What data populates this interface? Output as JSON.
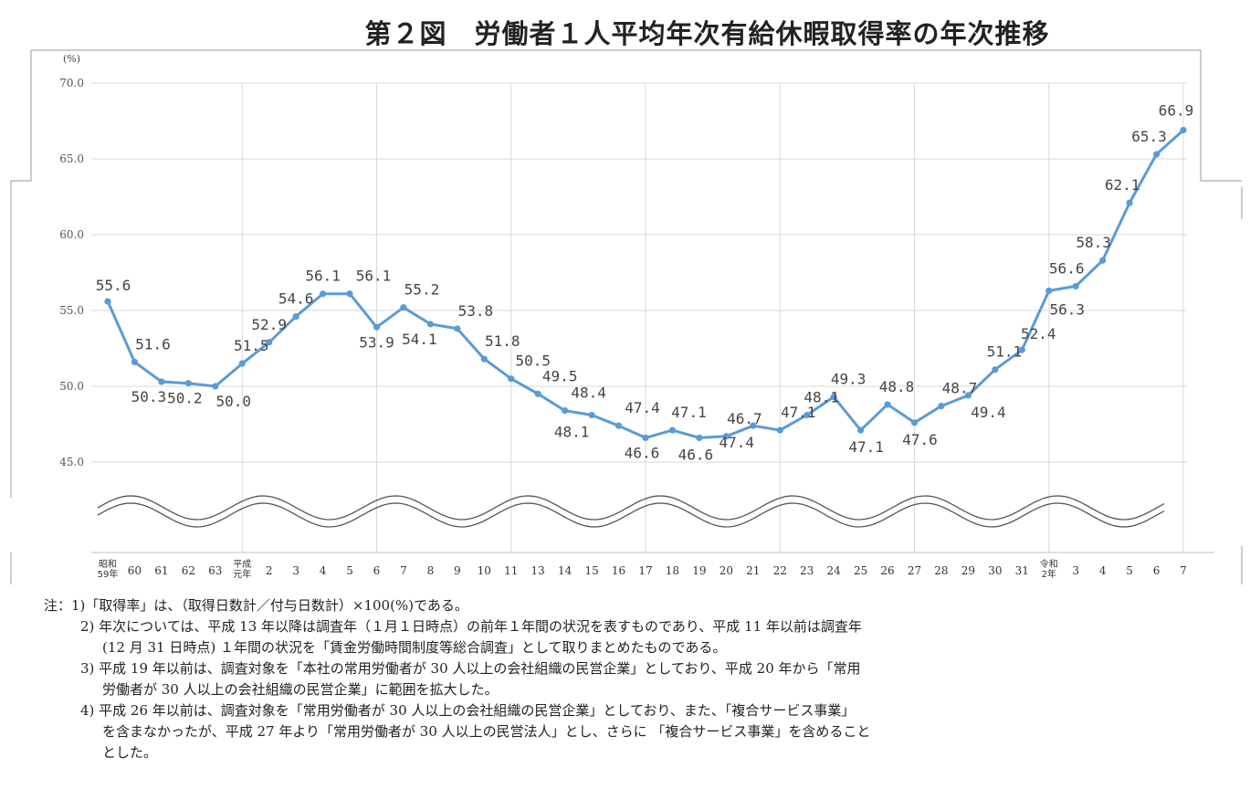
{
  "title": "第２図　労働者１人平均年次有給休暇取得率の年次推移",
  "chart_data": {
    "type": "line",
    "unit_label": "(%)",
    "ylim": [
      40,
      70
    ],
    "yticks": [
      "45.0",
      "50.0",
      "55.0",
      "60.0",
      "65.0",
      "70.0"
    ],
    "ytick_values": [
      45,
      50,
      55,
      60,
      65,
      70
    ],
    "grid": true,
    "axis_break": true,
    "series_color": "#5b9bd5",
    "x": [
      {
        "top": "昭和",
        "bottom": "59年"
      },
      {
        "top": "",
        "bottom": "60"
      },
      {
        "top": "",
        "bottom": "61"
      },
      {
        "top": "",
        "bottom": "62"
      },
      {
        "top": "",
        "bottom": "63"
      },
      {
        "top": "平成",
        "bottom": "元年"
      },
      {
        "top": "",
        "bottom": "2"
      },
      {
        "top": "",
        "bottom": "3"
      },
      {
        "top": "",
        "bottom": "4"
      },
      {
        "top": "",
        "bottom": "5"
      },
      {
        "top": "",
        "bottom": "6"
      },
      {
        "top": "",
        "bottom": "7"
      },
      {
        "top": "",
        "bottom": "8"
      },
      {
        "top": "",
        "bottom": "9"
      },
      {
        "top": "",
        "bottom": "10"
      },
      {
        "top": "",
        "bottom": "11"
      },
      {
        "top": "",
        "bottom": "13"
      },
      {
        "top": "",
        "bottom": "14"
      },
      {
        "top": "",
        "bottom": "15"
      },
      {
        "top": "",
        "bottom": "16"
      },
      {
        "top": "",
        "bottom": "17"
      },
      {
        "top": "",
        "bottom": "18"
      },
      {
        "top": "",
        "bottom": "19"
      },
      {
        "top": "",
        "bottom": "20"
      },
      {
        "top": "",
        "bottom": "21"
      },
      {
        "top": "",
        "bottom": "22"
      },
      {
        "top": "",
        "bottom": "23"
      },
      {
        "top": "",
        "bottom": "24"
      },
      {
        "top": "",
        "bottom": "25"
      },
      {
        "top": "",
        "bottom": "26"
      },
      {
        "top": "",
        "bottom": "27"
      },
      {
        "top": "",
        "bottom": "28"
      },
      {
        "top": "",
        "bottom": "29"
      },
      {
        "top": "",
        "bottom": "30"
      },
      {
        "top": "",
        "bottom": "31"
      },
      {
        "top": "令和",
        "bottom": "2年"
      },
      {
        "top": "",
        "bottom": "3"
      },
      {
        "top": "",
        "bottom": "4"
      },
      {
        "top": "",
        "bottom": "5"
      },
      {
        "top": "",
        "bottom": "6"
      },
      {
        "top": "",
        "bottom": "7"
      }
    ],
    "values": [
      55.6,
      51.6,
      50.3,
      50.2,
      50.0,
      51.5,
      52.9,
      54.6,
      56.1,
      56.1,
      53.9,
      55.2,
      54.1,
      53.8,
      51.8,
      50.5,
      49.5,
      48.4,
      48.1,
      47.4,
      46.6,
      47.1,
      46.6,
      46.7,
      47.4,
      47.1,
      48.1,
      49.3,
      47.1,
      48.8,
      47.6,
      48.7,
      49.4,
      51.1,
      52.4,
      56.3,
      56.6,
      58.3,
      62.1,
      65.3,
      66.9
    ],
    "labels": [
      "55.6",
      "51.6",
      "50.3",
      "50.2",
      "50.0",
      "51.5",
      "52.9",
      "54.6",
      "56.1",
      "56.1",
      "53.9",
      "55.2",
      "54.1",
      "53.8",
      "51.8",
      "50.5",
      "49.5",
      "48.4",
      "48.1",
      "47.4",
      "46.6",
      "47.1",
      "46.6",
      "46.7",
      "47.4",
      "47.1",
      "48.1",
      "49.3",
      "47.1",
      "48.8",
      "47.6",
      "48.7",
      "49.4",
      "51.1",
      "52.4",
      "56.3",
      "56.6",
      "58.3",
      "62.1",
      "65.3",
      "66.9"
    ]
  },
  "notes": [
    {
      "style": "first",
      "text": "注：1)「取得率」は、（取得日数計／付与日数計）×100(%)である。"
    },
    {
      "style": "indent",
      "text": "2) 年次については、平成 13 年以降は調査年（１月１日時点）の前年１年間の状況を表すものであり、平成 11 年以前は調査年"
    },
    {
      "style": "cont",
      "text": "(12 月 31 日時点) １年間の状況を「賃金労働時間制度等総合調査」として取りまとめたものである。"
    },
    {
      "style": "indent",
      "text": "3) 平成 19 年以前は、調査対象を「本社の常用労働者が 30 人以上の会社組織の民営企業」としており、平成 20 年から「常用"
    },
    {
      "style": "cont",
      "text": "労働者が 30 人以上の会社組織の民営企業」に範囲を拡大した。"
    },
    {
      "style": "indent",
      "text": "4) 平成 26 年以前は、調査対象を「常用労働者が 30 人以上の会社組織の民営企業」としており、また、「複合サービス事業」"
    },
    {
      "style": "cont",
      "text": "を含まなかったが、平成 27 年より「常用労働者が 30 人以上の民営法人」とし、さらに 「複合サービス事業」を含めること"
    },
    {
      "style": "cont",
      "text": "とした。"
    }
  ]
}
